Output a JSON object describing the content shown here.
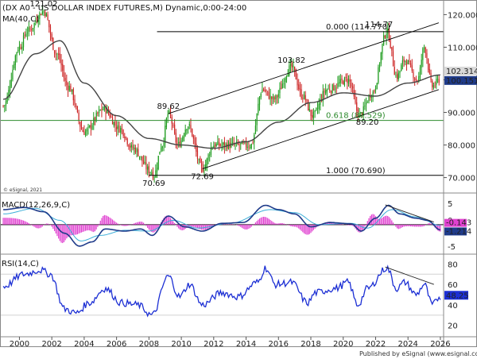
{
  "header": {
    "title": "(DX A0 - US DOLLAR INDEX FUTURES,M) Dynamic,0:00-24:00",
    "ma_label": "MA(40,C)",
    "copyright": "© eSignal, 2021",
    "publisher": "Published by eSignal (www.esignal.com)"
  },
  "colors": {
    "bull": "#1a9a1a",
    "bear": "#cc2222",
    "ma": "#444444",
    "channel": "#000000",
    "fib": "#2e8b2e",
    "macd": "#1f3b8a",
    "signal": "#3aaed8",
    "hist": "#e040d0",
    "rsi": "#1c2fd4",
    "last_price_bg": "#1f3b8a"
  },
  "chart_data": [
    {
      "type": "candlestick",
      "panel": "price",
      "x_tick_labels": [
        "2000",
        "2002",
        "2004",
        "2006",
        "2008",
        "2010",
        "2012",
        "2014",
        "2016",
        "2018",
        "2020",
        "2022",
        "2024",
        "2026"
      ],
      "y_tick_labels": [
        "120.000",
        "110.000",
        "100.000",
        "90.000",
        "80.000",
        "70.000"
      ],
      "ylim": [
        66,
        124
      ],
      "xlim": [
        1998.8,
        2026.2
      ],
      "anchors": [
        {
          "t": 1999.0,
          "v": 92
        },
        {
          "t": 2000.0,
          "v": 110
        },
        {
          "t": 2000.5,
          "v": 115
        },
        {
          "t": 2001.5,
          "v": 121.02
        },
        {
          "t": 2002.3,
          "v": 108
        },
        {
          "t": 2003.0,
          "v": 98
        },
        {
          "t": 2004.0,
          "v": 84
        },
        {
          "t": 2005.2,
          "v": 91
        },
        {
          "t": 2006.2,
          "v": 85
        },
        {
          "t": 2007.0,
          "v": 79
        },
        {
          "t": 2008.1,
          "v": 72
        },
        {
          "t": 2008.3,
          "v": 70.69
        },
        {
          "t": 2008.8,
          "v": 80
        },
        {
          "t": 2009.2,
          "v": 89.62
        },
        {
          "t": 2009.8,
          "v": 80
        },
        {
          "t": 2010.4,
          "v": 86
        },
        {
          "t": 2011.3,
          "v": 72.69
        },
        {
          "t": 2012.0,
          "v": 80
        },
        {
          "t": 2013.0,
          "v": 80
        },
        {
          "t": 2014.3,
          "v": 80
        },
        {
          "t": 2015.0,
          "v": 97
        },
        {
          "t": 2015.7,
          "v": 94
        },
        {
          "t": 2016.8,
          "v": 103.82
        },
        {
          "t": 2017.5,
          "v": 95
        },
        {
          "t": 2018.1,
          "v": 89
        },
        {
          "t": 2019.0,
          "v": 97
        },
        {
          "t": 2020.3,
          "v": 100
        },
        {
          "t": 2021.0,
          "v": 89.2
        },
        {
          "t": 2021.8,
          "v": 96
        },
        {
          "t": 2022.7,
          "v": 114.77
        },
        {
          "t": 2023.3,
          "v": 101
        },
        {
          "t": 2023.8,
          "v": 106
        },
        {
          "t": 2024.6,
          "v": 100
        },
        {
          "t": 2025.0,
          "v": 110
        },
        {
          "t": 2025.5,
          "v": 98
        },
        {
          "t": 2026.0,
          "v": 100.151
        }
      ],
      "ma40_anchors": [
        {
          "t": 1999.0,
          "v": 94
        },
        {
          "t": 2001.0,
          "v": 108
        },
        {
          "t": 2002.5,
          "v": 112
        },
        {
          "t": 2004.0,
          "v": 99
        },
        {
          "t": 2006.0,
          "v": 89
        },
        {
          "t": 2008.0,
          "v": 82
        },
        {
          "t": 2010.0,
          "v": 80
        },
        {
          "t": 2012.0,
          "v": 79
        },
        {
          "t": 2014.0,
          "v": 81
        },
        {
          "t": 2016.0,
          "v": 87
        },
        {
          "t": 2018.0,
          "v": 93
        },
        {
          "t": 2020.0,
          "v": 96
        },
        {
          "t": 2022.0,
          "v": 95
        },
        {
          "t": 2024.0,
          "v": 99
        },
        {
          "t": 2026.0,
          "v": 101.5
        }
      ],
      "annotations": [
        {
          "text": "121.02",
          "t": 2001.5,
          "v": 121.02,
          "pos": "above"
        },
        {
          "text": "70.69",
          "t": 2008.3,
          "v": 70.69,
          "pos": "below"
        },
        {
          "text": "89.62",
          "t": 2009.2,
          "v": 89.62,
          "pos": "above"
        },
        {
          "text": "72.69",
          "t": 2011.3,
          "v": 72.69,
          "pos": "below"
        },
        {
          "text": "103.82",
          "t": 2016.8,
          "v": 103.82,
          "pos": "above"
        },
        {
          "text": "114.77",
          "t": 2022.7,
          "v": 114.77,
          "pos": "above-left"
        },
        {
          "text": "89.20",
          "t": 2021.0,
          "v": 89.2,
          "pos": "below-right"
        }
      ],
      "hlines": [
        {
          "label": "0.000 (114.770)",
          "v": 114.77,
          "t_from": 2008.5,
          "style": "black"
        },
        {
          "label": "0.618 (87.529)",
          "v": 87.529,
          "t_from": 1998.8,
          "style": "fib"
        },
        {
          "label": "1.000 (70.690)",
          "v": 70.69,
          "t_from": 2008.0,
          "style": "black"
        }
      ],
      "channel": [
        {
          "t1": 2009.2,
          "v1": 89.62,
          "t2": 2025.9,
          "v2": 117.5
        },
        {
          "t1": 2011.3,
          "v1": 72.69,
          "t2": 2025.9,
          "v2": 97.0
        }
      ],
      "last_price": "100.151",
      "ma_value": "102.314"
    },
    {
      "type": "line",
      "panel": "macd",
      "title": "MACD(12,26,9,C)",
      "y_tick_labels": [
        "5",
        "0",
        "-5"
      ],
      "ylim": [
        -6.5,
        7
      ],
      "macd_anchors": [
        {
          "t": 1999.0,
          "v": 3.5
        },
        {
          "t": 2000.3,
          "v": 4.0
        },
        {
          "t": 2001.5,
          "v": 3.0
        },
        {
          "t": 2002.8,
          "v": -2.0
        },
        {
          "t": 2003.7,
          "v": -5.0
        },
        {
          "t": 2004.5,
          "v": -4.0
        },
        {
          "t": 2005.3,
          "v": -1.0
        },
        {
          "t": 2006.5,
          "v": -1.5
        },
        {
          "t": 2007.5,
          "v": -1.0
        },
        {
          "t": 2008.2,
          "v": -2.5
        },
        {
          "t": 2009.2,
          "v": 2.0
        },
        {
          "t": 2010.2,
          "v": -0.5
        },
        {
          "t": 2011.3,
          "v": -1.5
        },
        {
          "t": 2012.5,
          "v": 0.3
        },
        {
          "t": 2013.8,
          "v": 0.5
        },
        {
          "t": 2015.2,
          "v": 4.5
        },
        {
          "t": 2016.0,
          "v": 3.5
        },
        {
          "t": 2017.0,
          "v": 2.5
        },
        {
          "t": 2018.0,
          "v": -0.5
        },
        {
          "t": 2019.2,
          "v": 0.5
        },
        {
          "t": 2020.5,
          "v": 0.2
        },
        {
          "t": 2021.1,
          "v": -1.5
        },
        {
          "t": 2022.0,
          "v": 1.5
        },
        {
          "t": 2022.8,
          "v": 4.5
        },
        {
          "t": 2023.5,
          "v": 2.5
        },
        {
          "t": 2024.5,
          "v": 1.5
        },
        {
          "t": 2025.2,
          "v": 1.0
        },
        {
          "t": 2026.0,
          "v": -1.214
        }
      ],
      "signal_anchors": [
        {
          "t": 1999.0,
          "v": 2.5
        },
        {
          "t": 2001.0,
          "v": 3.8
        },
        {
          "t": 2002.5,
          "v": 1.0
        },
        {
          "t": 2003.8,
          "v": -3.8
        },
        {
          "t": 2005.0,
          "v": -2.5
        },
        {
          "t": 2006.5,
          "v": -1.3
        },
        {
          "t": 2008.0,
          "v": -1.5
        },
        {
          "t": 2009.5,
          "v": 1.0
        },
        {
          "t": 2011.0,
          "v": -0.8
        },
        {
          "t": 2013.0,
          "v": 0.3
        },
        {
          "t": 2015.5,
          "v": 3.5
        },
        {
          "t": 2017.0,
          "v": 2.8
        },
        {
          "t": 2018.5,
          "v": 0.0
        },
        {
          "t": 2020.5,
          "v": 0.3
        },
        {
          "t": 2021.5,
          "v": -0.8
        },
        {
          "t": 2023.0,
          "v": 3.5
        },
        {
          "t": 2024.5,
          "v": 1.8
        },
        {
          "t": 2026.0,
          "v": -0.2
        }
      ],
      "divergence_line": {
        "t1": 2022.6,
        "v1": 4.6,
        "t2": 2025.6,
        "v2": 0.6
      },
      "labels": [
        "-0.143",
        "-1.214"
      ]
    },
    {
      "type": "line",
      "panel": "rsi",
      "title": "RSI(14,C)",
      "y_tick_labels": [
        "80",
        "60",
        "40",
        "20"
      ],
      "ylim": [
        12,
        88
      ],
      "rsi_anchors": [
        {
          "t": 1999.0,
          "v": 58
        },
        {
          "t": 2000.3,
          "v": 70
        },
        {
          "t": 2001.3,
          "v": 74
        },
        {
          "t": 2001.9,
          "v": 70
        },
        {
          "t": 2002.8,
          "v": 36
        },
        {
          "t": 2003.5,
          "v": 32
        },
        {
          "t": 2004.3,
          "v": 42
        },
        {
          "t": 2005.3,
          "v": 56
        },
        {
          "t": 2006.3,
          "v": 42
        },
        {
          "t": 2007.3,
          "v": 40
        },
        {
          "t": 2008.2,
          "v": 30
        },
        {
          "t": 2009.2,
          "v": 68
        },
        {
          "t": 2009.9,
          "v": 48
        },
        {
          "t": 2010.5,
          "v": 60
        },
        {
          "t": 2011.3,
          "v": 40
        },
        {
          "t": 2012.5,
          "v": 52
        },
        {
          "t": 2013.5,
          "v": 48
        },
        {
          "t": 2014.7,
          "v": 62
        },
        {
          "t": 2015.2,
          "v": 76
        },
        {
          "t": 2015.8,
          "v": 60
        },
        {
          "t": 2016.8,
          "v": 62
        },
        {
          "t": 2017.8,
          "v": 42
        },
        {
          "t": 2018.3,
          "v": 52
        },
        {
          "t": 2019.5,
          "v": 56
        },
        {
          "t": 2020.3,
          "v": 62
        },
        {
          "t": 2020.9,
          "v": 40
        },
        {
          "t": 2021.5,
          "v": 56
        },
        {
          "t": 2022.7,
          "v": 76
        },
        {
          "t": 2023.3,
          "v": 56
        },
        {
          "t": 2023.8,
          "v": 62
        },
        {
          "t": 2024.5,
          "v": 50
        },
        {
          "t": 2025.0,
          "v": 60
        },
        {
          "t": 2025.5,
          "v": 40
        },
        {
          "t": 2026.0,
          "v": 48.25
        }
      ],
      "divergence_line": {
        "t1": 2022.6,
        "v1": 77,
        "t2": 2025.6,
        "v2": 60
      },
      "label": "48.25"
    }
  ]
}
